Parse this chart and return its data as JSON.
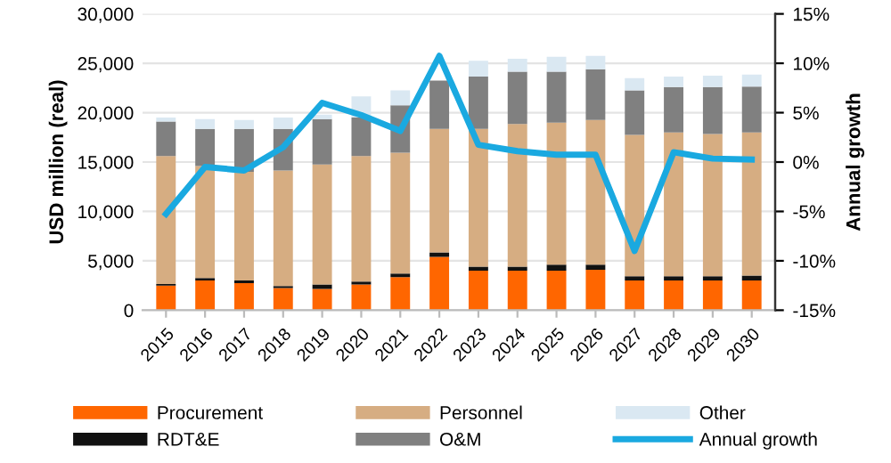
{
  "chart_data": {
    "type": "bar",
    "stacked": true,
    "ylabel": "USD million (real)",
    "y2label": "Annual growth",
    "categories": [
      "2015",
      "2016",
      "2017",
      "2018",
      "2019",
      "2020",
      "2021",
      "2022",
      "2023",
      "2024",
      "2025",
      "2026",
      "2027",
      "2028",
      "2029",
      "2030"
    ],
    "series": [
      {
        "name": "Procurement",
        "color": "#ff6600",
        "values": [
          2500,
          3000,
          2750,
          2250,
          2150,
          2600,
          3350,
          5400,
          4000,
          4000,
          4000,
          4100,
          3000,
          3000,
          3000,
          3000
        ]
      },
      {
        "name": "RDT&E",
        "color": "#111111",
        "values": [
          150,
          250,
          250,
          200,
          450,
          300,
          350,
          450,
          400,
          400,
          600,
          500,
          450,
          450,
          450,
          500
        ]
      },
      {
        "name": "Personnel",
        "color": "#d6ad82",
        "values": [
          12950,
          11350,
          11000,
          11700,
          12150,
          12700,
          12250,
          12500,
          13950,
          14450,
          14400,
          14650,
          14300,
          14550,
          14400,
          14500
        ]
      },
      {
        "name": "O&M",
        "color": "#808080",
        "values": [
          3500,
          3750,
          4350,
          4200,
          4600,
          3900,
          4800,
          4900,
          5300,
          5300,
          5150,
          5150,
          4500,
          4600,
          4750,
          4650
        ]
      },
      {
        "name": "Other",
        "color": "#dae8f2",
        "values": [
          400,
          1000,
          900,
          1150,
          450,
          2150,
          1500,
          null,
          1600,
          1300,
          1500,
          1350,
          1250,
          1050,
          1150,
          1200
        ]
      },
      {
        "name": "Annual growth",
        "type": "line",
        "axis": "y2",
        "color": "#1aa9e0",
        "values": [
          -5.25,
          -0.5,
          -0.85,
          1.5,
          6.0,
          4.75,
          3.15,
          10.75,
          1.75,
          1.1,
          0.75,
          0.75,
          -9.0,
          1.0,
          0.35,
          0.25
        ]
      }
    ],
    "ylim": [
      0,
      30000
    ],
    "yticks": [
      {
        "value": 0,
        "label": "0"
      },
      {
        "value": 5000,
        "label": "5,000"
      },
      {
        "value": 10000,
        "label": "10,000"
      },
      {
        "value": 15000,
        "label": "15,000"
      },
      {
        "value": 20000,
        "label": "20,000"
      },
      {
        "value": 25000,
        "label": "25,000"
      },
      {
        "value": 30000,
        "label": "30,000"
      }
    ],
    "y2lim": [
      -15,
      15
    ],
    "y2ticks": [
      {
        "value": -15,
        "label": "-15%"
      },
      {
        "value": -10,
        "label": "-10%"
      },
      {
        "value": -5,
        "label": "-5%"
      },
      {
        "value": 0,
        "label": "0%"
      },
      {
        "value": 5,
        "label": "5%"
      },
      {
        "value": 10,
        "label": "10%"
      },
      {
        "value": 15,
        "label": "15%"
      }
    ],
    "grid": "y",
    "legend": "bottom",
    "marker": "none",
    "line_style": "solid"
  }
}
